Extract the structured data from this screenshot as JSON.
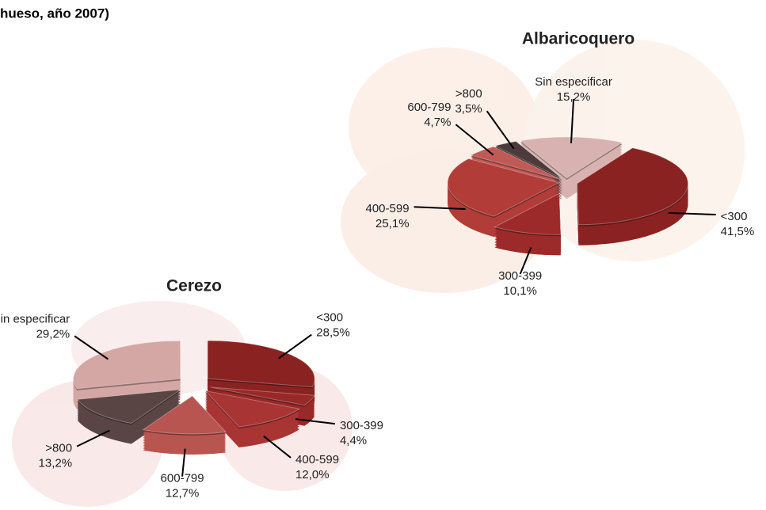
{
  "heading": "hueso, año 2007)",
  "chart_data": [
    {
      "type": "pie",
      "title": "Albaricoquero",
      "categories": [
        "<300",
        "300-399",
        "400-599",
        "600-799",
        ">800",
        "Sin especificar"
      ],
      "values": [
        41.5,
        10.1,
        25.1,
        4.7,
        3.5,
        15.2
      ],
      "value_labels": [
        "41,5%",
        "10,1%",
        "25,1%",
        "4,7%",
        "3,5%",
        "15,2%"
      ],
      "colors": [
        "#8b2222",
        "#9c2a2a",
        "#b13c38",
        "#c05a55",
        "#4d3a3a",
        "#d8b2b0"
      ]
    },
    {
      "type": "pie",
      "title": "Cerezo",
      "categories": [
        "<300",
        "300-399",
        "400-599",
        "600-799",
        ">800",
        "Sin especificar"
      ],
      "values": [
        28.5,
        4.4,
        12.0,
        12.7,
        13.2,
        29.2
      ],
      "value_labels": [
        "28,5%",
        "4,4%",
        "12,0%",
        "12,7%",
        "13,2%",
        "29,2%"
      ],
      "colors": [
        "#8b2222",
        "#992828",
        "#a83434",
        "#b85550",
        "#5a4545",
        "#d4a6a4"
      ]
    }
  ]
}
